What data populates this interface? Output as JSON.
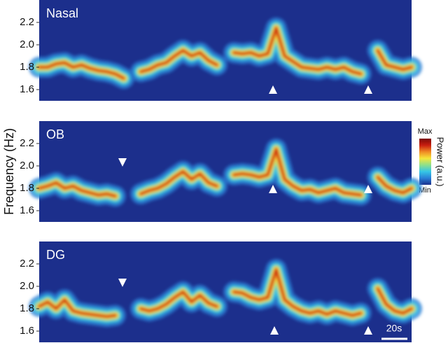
{
  "chart_data": [
    {
      "type": "spectrogram",
      "title": "Nasal",
      "ylim": [
        1.5,
        2.4
      ],
      "yticks": [
        1.6,
        {
          "value": 1.8,
          "label": "1.8"
        },
        {
          "value": 2.0,
          "label": "2.0"
        },
        2.2
      ],
      "values": [
        1.8,
        1.8,
        1.83,
        1.84,
        1.8,
        1.82,
        1.79,
        1.77,
        1.76,
        1.74,
        1.7,
        null,
        1.76,
        1.78,
        1.82,
        1.84,
        1.9,
        1.95,
        1.9,
        1.93,
        1.86,
        1.82,
        null,
        1.93,
        1.92,
        1.93,
        1.9,
        1.92,
        2.15,
        1.9,
        1.85,
        1.8,
        1.79,
        1.78,
        1.8,
        1.78,
        1.8,
        1.76,
        1.74,
        null,
        1.95,
        1.82,
        1.8,
        1.78,
        1.8
      ]
    },
    {
      "type": "spectrogram",
      "title": "OB",
      "ylim": [
        1.5,
        2.4
      ],
      "yticks": [
        1.6,
        {
          "value": 1.8,
          "label": "1.8"
        },
        {
          "value": 2.0,
          "label": "2.0"
        },
        2.2
      ],
      "values": [
        1.8,
        1.82,
        1.85,
        1.8,
        1.82,
        1.78,
        1.76,
        1.74,
        1.75,
        1.73,
        null,
        null,
        1.75,
        1.78,
        1.8,
        1.84,
        1.9,
        1.95,
        1.88,
        1.93,
        1.85,
        1.82,
        null,
        1.92,
        1.93,
        1.92,
        1.9,
        1.92,
        2.15,
        1.88,
        1.82,
        1.78,
        1.79,
        1.76,
        1.78,
        1.8,
        1.76,
        1.75,
        1.74,
        null,
        1.9,
        1.82,
        1.78,
        1.76,
        1.8
      ]
    },
    {
      "type": "spectrogram",
      "title": "DG",
      "ylim": [
        1.5,
        2.4
      ],
      "yticks": [
        1.6,
        {
          "value": 1.8,
          "label": "1.8"
        },
        {
          "value": 2.0,
          "label": "2.0"
        },
        2.2
      ],
      "values": [
        1.82,
        1.86,
        1.8,
        1.88,
        1.78,
        1.76,
        1.75,
        1.74,
        1.73,
        1.74,
        null,
        null,
        1.8,
        1.78,
        1.8,
        1.84,
        1.9,
        1.95,
        1.86,
        1.92,
        1.85,
        1.82,
        null,
        1.95,
        1.94,
        1.9,
        1.88,
        1.9,
        2.15,
        1.88,
        1.82,
        1.78,
        1.76,
        1.78,
        1.75,
        1.78,
        1.76,
        1.74,
        1.76,
        null,
        1.98,
        1.84,
        1.78,
        1.76,
        1.8
      ]
    }
  ],
  "y_label": "Frequency (Hz)",
  "colorbar": {
    "title": "Power (a.u.)",
    "max_label": "Max",
    "min_label": "Min",
    "colors": [
      "#1c2f8c",
      "#2a7fd6",
      "#35c6e6",
      "#8ee08a",
      "#f5e63b",
      "#f08a24",
      "#c81e10",
      "#7a0a06"
    ]
  },
  "scale_bar": "20s"
}
